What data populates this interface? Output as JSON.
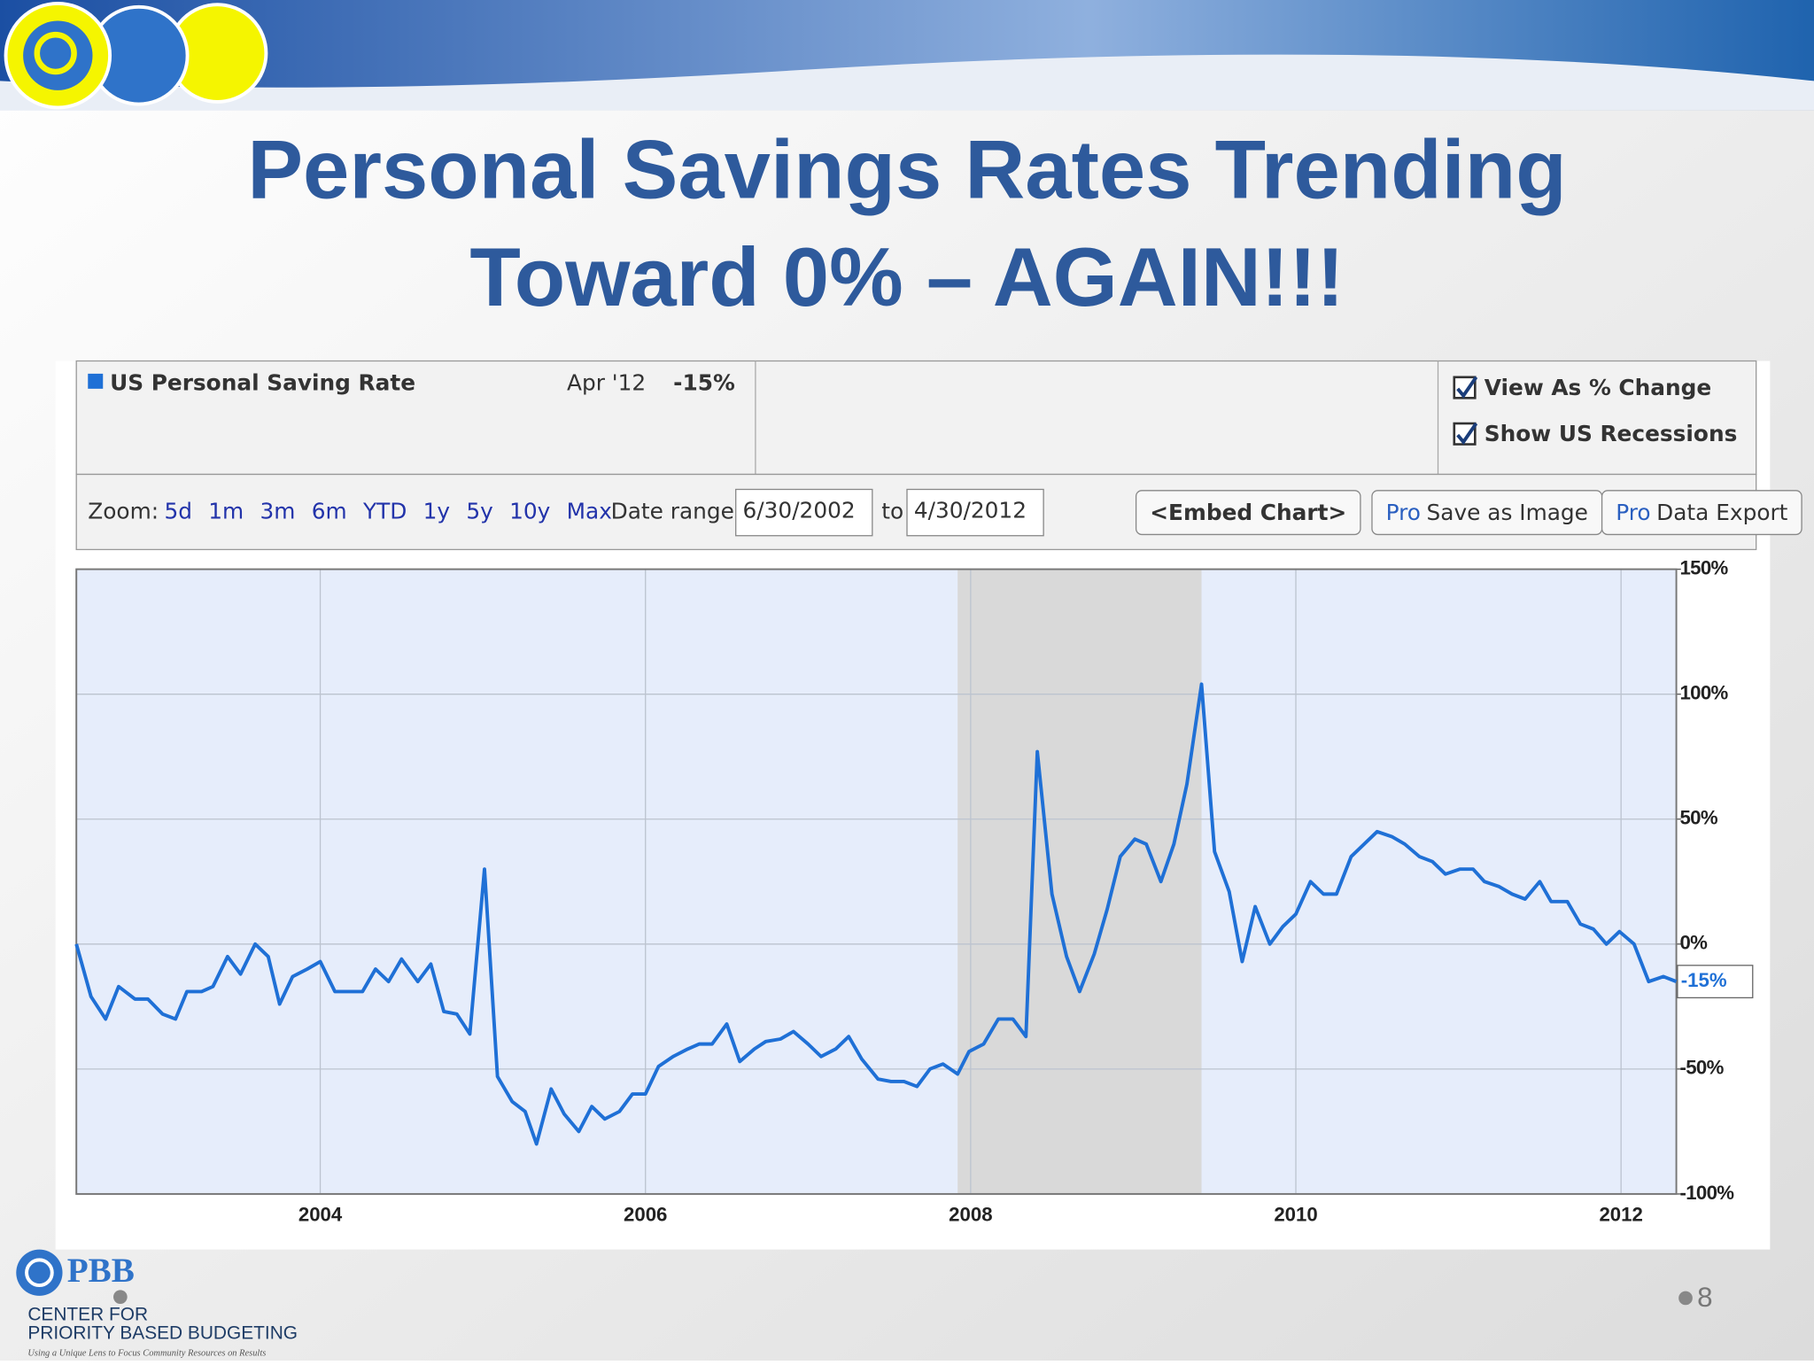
{
  "slide": {
    "title_lines": [
      "Personal Savings Rates Trending",
      "Toward 0% – AGAIN!!!"
    ],
    "page_number": "8",
    "footer": {
      "logo": "PBB",
      "org_lines": [
        "CENTER FOR",
        "PRIORITY BASED BUDGETING"
      ],
      "tagline": "Using a Unique Lens to Focus Community Resources on Results"
    }
  },
  "toolbar": {
    "legend_date": "Apr '12",
    "legend_value": "-15%",
    "checkboxes": [
      "View As % Change",
      "Show US Recessions"
    ],
    "zoom_label": "Zoom:",
    "zoom_options": [
      "5d",
      "1m",
      "3m",
      "6m",
      "YTD",
      "1y",
      "5y",
      "10y",
      "Max"
    ],
    "date_range_label": "Date range:",
    "date_from": "6/30/2002",
    "date_to_label": "to",
    "date_to": "4/30/2012",
    "buttons": [
      {
        "text": "<Embed Chart>"
      },
      {
        "badge": "Pro",
        "text": "Save as Image"
      },
      {
        "badge": "Pro",
        "text": "Data Export"
      }
    ]
  },
  "chart_data": {
    "type": "line",
    "series": [
      {
        "name": "US Personal Saving Rate",
        "color": "#1f70d6",
        "values": [
          0,
          -21,
          -30,
          -17,
          -22,
          -22,
          -28,
          -30,
          -19,
          -19,
          -17,
          -5,
          -12,
          0,
          -5,
          -24,
          -13,
          -10,
          -7,
          -19,
          -19,
          -19,
          -10,
          -15,
          -6,
          -15,
          -8,
          -27,
          -28,
          -36,
          30,
          -53,
          -63,
          -67,
          -80,
          -58,
          -68,
          -75,
          -65,
          -70,
          -67,
          -60,
          -60,
          -49,
          -45,
          -42,
          -40,
          -40,
          -32,
          -47,
          -42,
          -39,
          -38,
          -35,
          -40,
          -45,
          -42,
          -37,
          -46,
          -54,
          -55,
          -55,
          -57,
          -50,
          -48,
          -52,
          -43,
          -40,
          -30,
          -30,
          -37,
          77,
          20,
          -5,
          -19,
          -4,
          14,
          35,
          42,
          40,
          25,
          40,
          64,
          104,
          37,
          21,
          -7,
          15,
          0,
          7,
          12,
          25,
          20,
          20,
          35,
          40,
          45,
          43,
          40,
          35,
          33,
          28,
          30,
          30,
          25,
          23,
          20,
          18,
          25,
          17,
          17,
          8,
          6,
          0,
          5,
          0,
          -15,
          -13,
          -15
        ]
      }
    ],
    "x": [
      2002.5,
      2002.59,
      2002.68,
      2002.76,
      2002.86,
      2002.94,
      2003.03,
      2003.11,
      2003.18,
      2003.27,
      2003.34,
      2003.43,
      2003.51,
      2003.6,
      2003.68,
      2003.75,
      2003.83,
      2003.92,
      2004.0,
      2004.09,
      2004.17,
      2004.26,
      2004.34,
      2004.42,
      2004.5,
      2004.6,
      2004.68,
      2004.76,
      2004.84,
      2004.92,
      2005.01,
      2005.09,
      2005.18,
      2005.26,
      2005.33,
      2005.42,
      2005.5,
      2005.59,
      2005.67,
      2005.75,
      2005.84,
      2005.92,
      2006.0,
      2006.08,
      2006.17,
      2006.26,
      2006.33,
      2006.41,
      2006.5,
      2006.58,
      2006.67,
      2006.74,
      2006.83,
      2006.91,
      2007.0,
      2007.08,
      2007.17,
      2007.25,
      2007.33,
      2007.43,
      2007.51,
      2007.59,
      2007.67,
      2007.75,
      2007.83,
      2007.92,
      2007.99,
      2008.08,
      2008.17,
      2008.26,
      2008.34,
      2008.41,
      2008.5,
      2008.59,
      2008.67,
      2008.76,
      2008.84,
      2008.92,
      2009.01,
      2009.08,
      2009.17,
      2009.25,
      2009.33,
      2009.42,
      2009.5,
      2009.59,
      2009.67,
      2009.75,
      2009.84,
      2009.92,
      2010.0,
      2010.09,
      2010.17,
      2010.25,
      2010.34,
      2010.42,
      2010.5,
      2010.59,
      2010.67,
      2010.76,
      2010.84,
      2010.92,
      2011.01,
      2011.09,
      2011.16,
      2011.25,
      2011.33,
      2011.41,
      2011.5,
      2011.57,
      2011.67,
      2011.75,
      2011.83,
      2011.91,
      2011.99,
      2012.08,
      2012.17,
      2012.26,
      2012.34
    ],
    "xlim": [
      2002.5,
      2012.34
    ],
    "xticks": [
      2004,
      2006,
      2008,
      2010,
      2012
    ],
    "ylim": [
      -100,
      150
    ],
    "yticks": [
      {
        "value": -100,
        "label": "-100%"
      },
      {
        "value": -50,
        "label": "-50%"
      },
      {
        "value": 0,
        "label": "0%"
      },
      {
        "value": 50,
        "label": "50%"
      },
      {
        "value": 100,
        "label": "100%"
      },
      {
        "value": 150,
        "label": "150%"
      }
    ],
    "recessions": [
      [
        2007.92,
        2009.42
      ]
    ],
    "recession_color": "#d9d9d9",
    "plot_background": "#e6edfb",
    "grid": true,
    "end_label": "-15%"
  }
}
